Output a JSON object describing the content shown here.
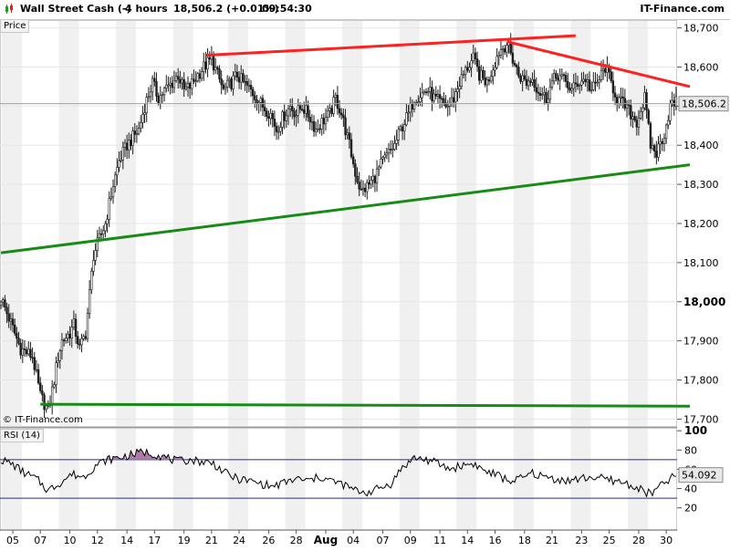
{
  "header": {
    "title": "Wall Street Cash (-)",
    "timeframe": "4 hours",
    "quote": "18,506.2 (+0.01%)",
    "time": "09:54:30",
    "brand": "IT-Finance.com"
  },
  "panels": {
    "price_label": "Price",
    "rsi_label": "RSI (14)",
    "watermark": "© IT-Finance.com"
  },
  "colors": {
    "bullish": "#1e1e1e",
    "resistance": "#ff2020",
    "support": "#168c16",
    "rsi_line": "#000000",
    "rsi_band": "#2a2a8a",
    "overbought_fill": "#b07aa8",
    "icon_green": "#16a016",
    "icon_red": "#e02020"
  },
  "chart_data": [
    {
      "type": "candlestick",
      "title": "Price",
      "y_ticks": [
        17700,
        17800,
        17900,
        18000,
        18100,
        18200,
        18300,
        18400,
        18500,
        18600,
        18700
      ],
      "y_tick_labels": [
        "17,700",
        "17,800",
        "17,900",
        "18,000",
        "18,100",
        "18,200",
        "18,300",
        "18,400",
        "18,500",
        "18,600",
        "18,700"
      ],
      "ylim": [
        17680,
        18720
      ],
      "last_price": 18506.2,
      "last_price_label": "18,506.2",
      "x_labels": [
        "05",
        "07",
        "10",
        "12",
        "14",
        "17",
        "19",
        "21",
        "24",
        "26",
        "28",
        "Aug",
        "04",
        "07",
        "09",
        "11",
        "14",
        "16",
        "18",
        "21",
        "23",
        "25",
        "28",
        "30"
      ],
      "grid": true,
      "anchors": [
        [
          0,
          18010
        ],
        [
          10,
          17880
        ],
        [
          16,
          17860
        ],
        [
          20,
          17760
        ],
        [
          24,
          17720
        ],
        [
          27,
          17800
        ],
        [
          29,
          17860
        ],
        [
          31,
          17900
        ],
        [
          35,
          17920
        ],
        [
          37,
          17940
        ],
        [
          40,
          17880
        ],
        [
          43,
          17920
        ],
        [
          47,
          18120
        ],
        [
          50,
          18160
        ],
        [
          53,
          18200
        ],
        [
          57,
          18300
        ],
        [
          60,
          18360
        ],
        [
          64,
          18400
        ],
        [
          67,
          18420
        ],
        [
          70,
          18440
        ],
        [
          73,
          18500
        ],
        [
          77,
          18560
        ],
        [
          80,
          18520
        ],
        [
          83,
          18540
        ],
        [
          87,
          18560
        ],
        [
          90,
          18580
        ],
        [
          93,
          18540
        ],
        [
          96,
          18550
        ],
        [
          100,
          18580
        ],
        [
          103,
          18600
        ],
        [
          107,
          18620
        ],
        [
          110,
          18580
        ],
        [
          113,
          18540
        ],
        [
          117,
          18560
        ],
        [
          120,
          18580
        ],
        [
          123,
          18560
        ],
        [
          127,
          18540
        ],
        [
          130,
          18520
        ],
        [
          133,
          18500
        ],
        [
          137,
          18480
        ],
        [
          140,
          18440
        ],
        [
          143,
          18470
        ],
        [
          147,
          18500
        ],
        [
          150,
          18480
        ],
        [
          153,
          18500
        ],
        [
          157,
          18470
        ],
        [
          160,
          18440
        ],
        [
          163,
          18460
        ],
        [
          167,
          18480
        ],
        [
          170,
          18520
        ],
        [
          173,
          18480
        ],
        [
          177,
          18400
        ],
        [
          180,
          18330
        ],
        [
          183,
          18280
        ],
        [
          187,
          18300
        ],
        [
          190,
          18320
        ],
        [
          193,
          18350
        ],
        [
          197,
          18380
        ],
        [
          200,
          18400
        ],
        [
          203,
          18440
        ],
        [
          207,
          18480
        ],
        [
          210,
          18520
        ],
        [
          213,
          18530
        ],
        [
          217,
          18540
        ],
        [
          220,
          18520
        ],
        [
          223,
          18510
        ],
        [
          227,
          18500
        ],
        [
          230,
          18520
        ],
        [
          233,
          18560
        ],
        [
          237,
          18600
        ],
        [
          240,
          18620
        ],
        [
          243,
          18580
        ],
        [
          247,
          18560
        ],
        [
          250,
          18600
        ],
        [
          253,
          18640
        ],
        [
          257,
          18660
        ],
        [
          260,
          18620
        ],
        [
          263,
          18580
        ],
        [
          267,
          18560
        ],
        [
          270,
          18570
        ],
        [
          273,
          18540
        ],
        [
          277,
          18520
        ],
        [
          280,
          18560
        ],
        [
          283,
          18580
        ],
        [
          287,
          18560
        ],
        [
          290,
          18540
        ],
        [
          293,
          18560
        ],
        [
          297,
          18570
        ],
        [
          300,
          18540
        ],
        [
          303,
          18560
        ],
        [
          307,
          18600
        ],
        [
          310,
          18560
        ],
        [
          313,
          18520
        ],
        [
          317,
          18500
        ],
        [
          320,
          18480
        ],
        [
          323,
          18460
        ],
        [
          327,
          18520
        ],
        [
          330,
          18400
        ],
        [
          333,
          18380
        ],
        [
          337,
          18430
        ],
        [
          340,
          18500
        ],
        [
          343,
          18510
        ]
      ]
    },
    {
      "type": "line",
      "title": "RSI (14)",
      "y_ticks": [
        20,
        40,
        60,
        80,
        100
      ],
      "ylim": [
        -3,
        103
      ],
      "bands": [
        30,
        70
      ],
      "last_value": 54.092,
      "last_value_label": "54.092",
      "x_labels": [
        "05",
        "07",
        "10",
        "12",
        "14",
        "17",
        "19",
        "21",
        "24",
        "26",
        "28",
        "Aug",
        "04",
        "07",
        "09",
        "11",
        "14",
        "16",
        "18",
        "21",
        "23",
        "25",
        "28",
        "30"
      ],
      "anchors": [
        [
          0,
          70
        ],
        [
          6,
          65
        ],
        [
          12,
          56
        ],
        [
          18,
          50
        ],
        [
          24,
          38
        ],
        [
          30,
          46
        ],
        [
          36,
          55
        ],
        [
          42,
          52
        ],
        [
          48,
          64
        ],
        [
          54,
          70
        ],
        [
          60,
          72
        ],
        [
          66,
          75
        ],
        [
          72,
          78
        ],
        [
          78,
          76
        ],
        [
          84,
          72
        ],
        [
          90,
          68
        ],
        [
          96,
          70
        ],
        [
          102,
          68
        ],
        [
          108,
          66
        ],
        [
          114,
          56
        ],
        [
          120,
          50
        ],
        [
          126,
          48
        ],
        [
          132,
          45
        ],
        [
          138,
          42
        ],
        [
          144,
          46
        ],
        [
          150,
          50
        ],
        [
          156,
          48
        ],
        [
          162,
          52
        ],
        [
          168,
          48
        ],
        [
          174,
          44
        ],
        [
          180,
          38
        ],
        [
          186,
          36
        ],
        [
          192,
          40
        ],
        [
          198,
          45
        ],
        [
          204,
          62
        ],
        [
          210,
          72
        ],
        [
          216,
          70
        ],
        [
          222,
          66
        ],
        [
          228,
          60
        ],
        [
          234,
          64
        ],
        [
          240,
          66
        ],
        [
          246,
          58
        ],
        [
          252,
          54
        ],
        [
          258,
          48
        ],
        [
          264,
          50
        ],
        [
          270,
          56
        ],
        [
          276,
          52
        ],
        [
          282,
          50
        ],
        [
          288,
          48
        ],
        [
          294,
          50
        ],
        [
          300,
          52
        ],
        [
          306,
          50
        ],
        [
          312,
          48
        ],
        [
          318,
          45
        ],
        [
          324,
          40
        ],
        [
          330,
          34
        ],
        [
          336,
          44
        ],
        [
          340,
          50
        ],
        [
          343,
          54
        ]
      ]
    }
  ],
  "trendlines": [
    {
      "name": "upper resistance",
      "color": "resistance",
      "start": [
        104,
        18630
      ],
      "end": [
        292,
        18680
      ]
    },
    {
      "name": "recent resistance",
      "color": "resistance",
      "start": [
        257,
        18665
      ],
      "end": [
        350,
        18550
      ]
    },
    {
      "name": "rising support",
      "color": "support",
      "start": [
        0,
        18125
      ],
      "end": [
        350,
        18350
      ]
    },
    {
      "name": "horizontal support",
      "color": "support",
      "start": [
        20,
        17738
      ],
      "end": [
        350,
        17733
      ]
    }
  ]
}
